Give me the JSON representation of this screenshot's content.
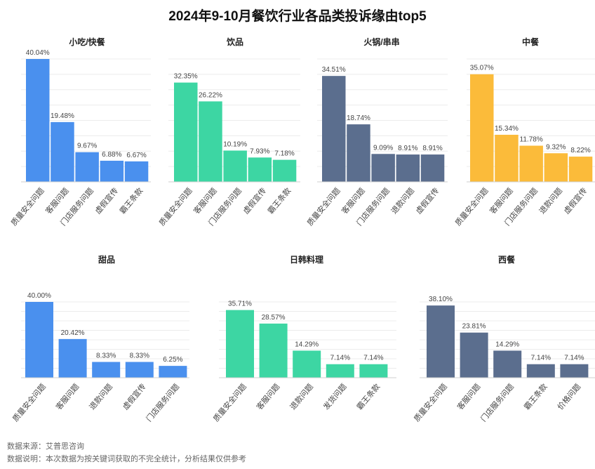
{
  "title": "2024年9-10月餐饮行业各品类投诉缘由top5",
  "footer": {
    "source": "数据来源：艾普思咨询",
    "note": "数据说明：本次数据为按关键词获取的不完全统计，分析结果仅供参考"
  },
  "colors": {
    "blue": "#4A90EE",
    "green": "#3DD6A3",
    "slate": "#5B6E8E",
    "yellow": "#FBBB3A"
  },
  "chart_data": [
    {
      "type": "bar",
      "title": "小吃/快餐",
      "color": "#4A90EE",
      "categories": [
        "质量安全问题",
        "客服问题",
        "门店服务问题",
        "虚假宣传",
        "霸王条款"
      ],
      "values": [
        40.04,
        19.48,
        9.67,
        6.88,
        6.67
      ],
      "labels": [
        "40.04%",
        "19.48%",
        "9.67%",
        "6.88%",
        "6.67%"
      ],
      "ylim": [
        0,
        40.04
      ]
    },
    {
      "type": "bar",
      "title": "饮品",
      "color": "#3DD6A3",
      "categories": [
        "质量安全问题",
        "客服问题",
        "门店服务问题",
        "虚假宣传",
        "霸王条款"
      ],
      "values": [
        32.35,
        26.22,
        10.19,
        7.93,
        7.18
      ],
      "labels": [
        "32.35%",
        "26.22%",
        "10.19%",
        "7.93%",
        "7.18%"
      ],
      "ylim": [
        0,
        40.04
      ]
    },
    {
      "type": "bar",
      "title": "火锅/串串",
      "color": "#5B6E8E",
      "categories": [
        "质量安全问题",
        "客服问题",
        "门店服务问题",
        "退款问题",
        "虚假宣传"
      ],
      "values": [
        34.51,
        18.74,
        9.09,
        8.91,
        8.91
      ],
      "labels": [
        "34.51%",
        "18.74%",
        "9.09%",
        "8.91%",
        "8.91%"
      ],
      "ylim": [
        0,
        40.04
      ]
    },
    {
      "type": "bar",
      "title": "中餐",
      "color": "#FBBB3A",
      "categories": [
        "质量安全问题",
        "客服问题",
        "门店服务问题",
        "退款问题",
        "虚假宣传"
      ],
      "values": [
        35.07,
        15.34,
        11.78,
        9.32,
        8.22
      ],
      "labels": [
        "35.07%",
        "15.34%",
        "11.78%",
        "9.32%",
        "8.22%"
      ],
      "ylim": [
        0,
        40.04
      ]
    },
    {
      "type": "bar",
      "title": "甜品",
      "color": "#4A90EE",
      "categories": [
        "质量安全问题",
        "客服问题",
        "退款问题",
        "虚假宣传",
        "门店服务问题"
      ],
      "values": [
        40.0,
        20.42,
        8.33,
        8.33,
        6.25
      ],
      "labels": [
        "40.00%",
        "20.42%",
        "8.33%",
        "8.33%",
        "6.25%"
      ],
      "ylim": [
        0,
        40.0
      ]
    },
    {
      "type": "bar",
      "title": "日韩料理",
      "color": "#3DD6A3",
      "categories": [
        "质量安全问题",
        "客服问题",
        "退款问题",
        "发货问题",
        "霸王条款"
      ],
      "values": [
        35.71,
        28.57,
        14.29,
        7.14,
        7.14
      ],
      "labels": [
        "35.71%",
        "28.57%",
        "14.29%",
        "7.14%",
        "7.14%"
      ],
      "ylim": [
        0,
        40.0
      ]
    },
    {
      "type": "bar",
      "title": "西餐",
      "color": "#5B6E8E",
      "categories": [
        "质量安全问题",
        "客服问题",
        "门店服务问题",
        "霸王条款",
        "价格问题"
      ],
      "values": [
        38.1,
        23.81,
        14.29,
        7.14,
        7.14
      ],
      "labels": [
        "38.10%",
        "23.81%",
        "14.29%",
        "7.14%",
        "7.14%"
      ],
      "ylim": [
        0,
        40.0
      ]
    }
  ]
}
